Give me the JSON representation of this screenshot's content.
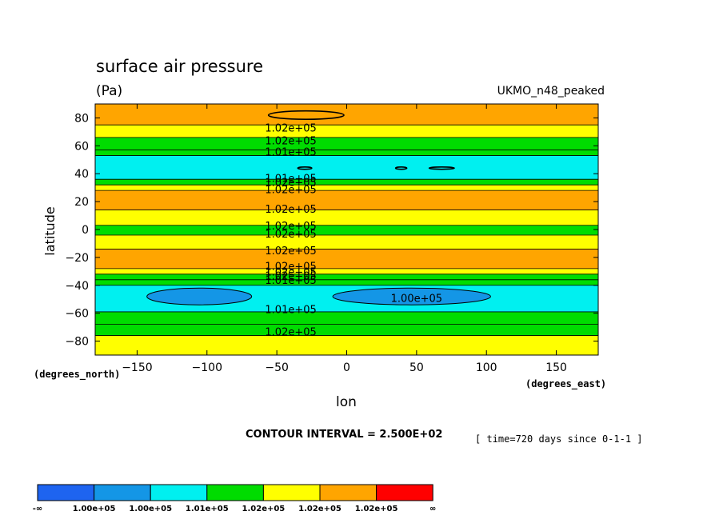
{
  "chart_data": {
    "type": "heatmap",
    "title": "surface air pressure",
    "units": "(Pa)",
    "model": "UKMO_n48_peaked",
    "xlabel": "lon",
    "ylabel": "latitude",
    "x_unit_label": "(degrees_east)",
    "y_unit_label": "(degrees_north)",
    "xlim": [
      -180,
      180
    ],
    "ylim": [
      -90,
      90
    ],
    "x_ticks": [
      -150,
      -100,
      -50,
      0,
      50,
      100,
      150
    ],
    "y_ticks": [
      80,
      60,
      40,
      20,
      0,
      -20,
      -40,
      -60,
      -80
    ],
    "contour_interval_text": "CONTOUR INTERVAL = 2.500E+02",
    "time_text": "[ time=720 days since 0-1-1 ]",
    "colors": [
      "#1e64f0",
      "#1496e6",
      "#00f0f0",
      "#00dc00",
      "#ffff00",
      "#ffa500",
      "#ff0000"
    ],
    "zonal_bands": [
      {
        "lat_min": -90,
        "lat_max": -76,
        "class": 4
      },
      {
        "lat_min": -76,
        "lat_max": -68,
        "class": 3
      },
      {
        "lat_min": -68,
        "lat_max": -59,
        "class": 3
      },
      {
        "lat_min": -59,
        "lat_max": -40,
        "class": 2
      },
      {
        "lat_min": -40,
        "lat_max": -36,
        "class": 3
      },
      {
        "lat_min": -36,
        "lat_max": -32,
        "class": 3
      },
      {
        "lat_min": -32,
        "lat_max": -28,
        "class": 4
      },
      {
        "lat_min": -28,
        "lat_max": -14,
        "class": 5
      },
      {
        "lat_min": -14,
        "lat_max": -4,
        "class": 4
      },
      {
        "lat_min": -4,
        "lat_max": 3,
        "class": 3
      },
      {
        "lat_min": 3,
        "lat_max": 14,
        "class": 4
      },
      {
        "lat_min": 14,
        "lat_max": 28,
        "class": 5
      },
      {
        "lat_min": 28,
        "lat_max": 32,
        "class": 4
      },
      {
        "lat_min": 32,
        "lat_max": 36,
        "class": 3
      },
      {
        "lat_min": 36,
        "lat_max": 53,
        "class": 2
      },
      {
        "lat_min": 53,
        "lat_max": 57,
        "class": 3
      },
      {
        "lat_min": 57,
        "lat_max": 66,
        "class": 3
      },
      {
        "lat_min": 66,
        "lat_max": 75,
        "class": 4
      },
      {
        "lat_min": 75,
        "lat_max": 90,
        "class": 5
      }
    ],
    "low_regions": [
      {
        "lon_min": -143,
        "lon_max": -68,
        "lat_min": -54,
        "lat_max": -42,
        "class": 1
      },
      {
        "lon_min": -10,
        "lon_max": 103,
        "lat_min": -54,
        "lat_max": -42,
        "class": 1
      }
    ],
    "small_contours": [
      {
        "lon_center": -29,
        "lat_center": 82,
        "lon_halfwidth": 27,
        "lat_halfwidth": 3
      },
      {
        "lon_center": -30,
        "lat_center": 44,
        "lon_halfwidth": 5,
        "lat_halfwidth": 0.8
      },
      {
        "lon_center": 39,
        "lat_center": 44,
        "lon_halfwidth": 4,
        "lat_halfwidth": 0.8
      },
      {
        "lon_center": 68,
        "lat_center": 44,
        "lon_halfwidth": 9,
        "lat_halfwidth": 0.8
      }
    ],
    "contour_labels": [
      {
        "text": "1.02e+05",
        "lon": -40,
        "lat": 73
      },
      {
        "text": "1.02e+05",
        "lon": -40,
        "lat": 64
      },
      {
        "text": "1.01e+05",
        "lon": -40,
        "lat": 56
      },
      {
        "text": "1.01e+05",
        "lon": -40,
        "lat": 37
      },
      {
        "text": "1.02e+05",
        "lon": -40,
        "lat": 34
      },
      {
        "text": "1.02e+05",
        "lon": -40,
        "lat": 29
      },
      {
        "text": "1.02e+05",
        "lon": -40,
        "lat": 15
      },
      {
        "text": "1.02e+05",
        "lon": -40,
        "lat": 3
      },
      {
        "text": "1.02e+05",
        "lon": -40,
        "lat": -3
      },
      {
        "text": "1.02e+05",
        "lon": -40,
        "lat": -15
      },
      {
        "text": "1.02e+05",
        "lon": -40,
        "lat": -26
      },
      {
        "text": "1.02e+05",
        "lon": -40,
        "lat": -30
      },
      {
        "text": "1.02e+05",
        "lon": -40,
        "lat": -33
      },
      {
        "text": "1.01e+05",
        "lon": -40,
        "lat": -36
      },
      {
        "text": "1.00e+05",
        "lon": 50,
        "lat": -49
      },
      {
        "text": "1.01e+05",
        "lon": -40,
        "lat": -57
      },
      {
        "text": "1.02e+05",
        "lon": -40,
        "lat": -73
      }
    ],
    "legend": {
      "labels": [
        "-∞",
        "1.00e+05",
        "1.00e+05",
        "1.01e+05",
        "1.02e+05",
        "1.02e+05",
        "1.02e+05",
        "∞"
      ]
    }
  }
}
